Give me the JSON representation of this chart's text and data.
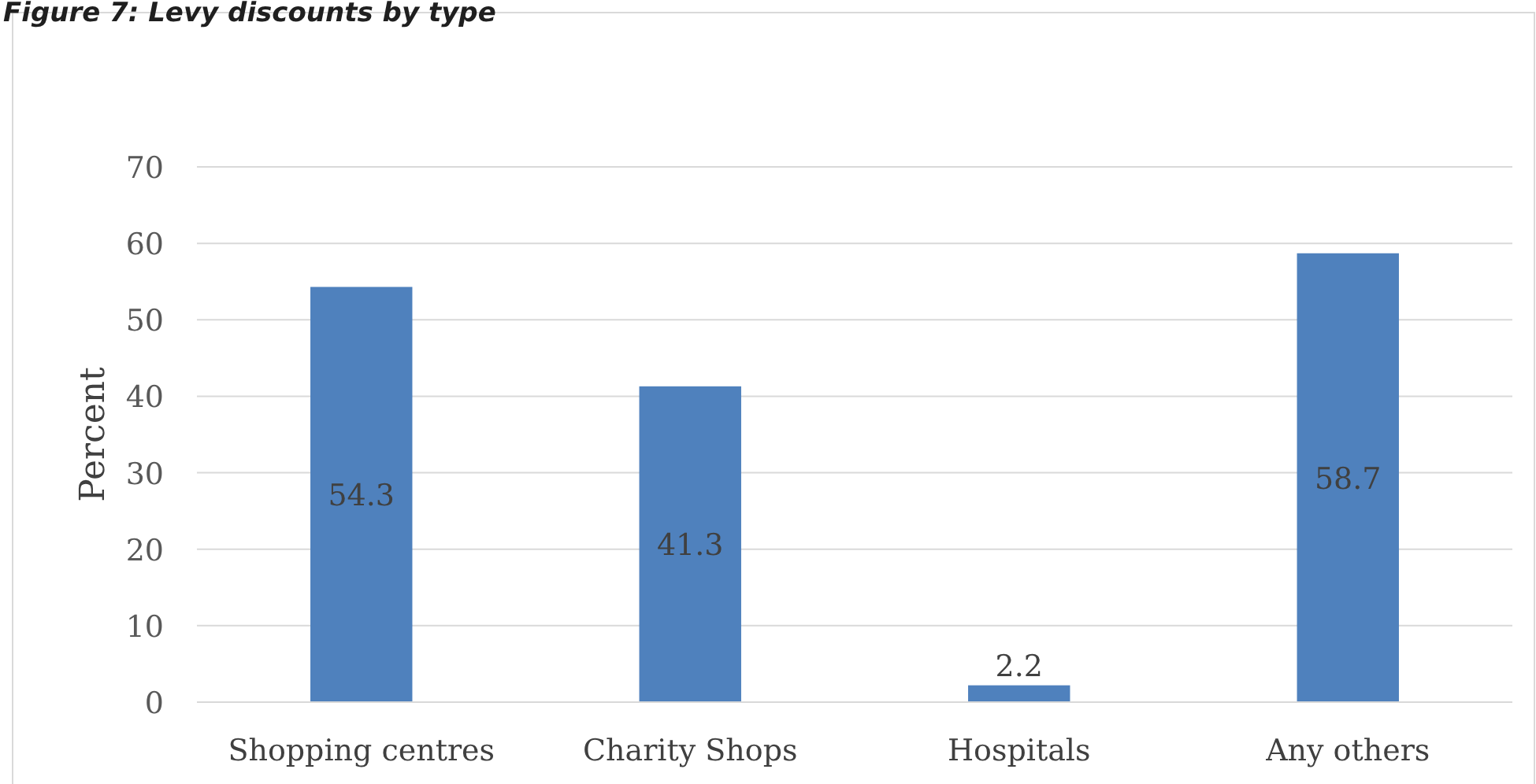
{
  "chart_data": {
    "type": "bar",
    "title": "Figure 7: Levy discounts by type",
    "ylabel": "Percent",
    "categories": [
      "Shopping centres",
      "Charity Shops",
      "Hospitals",
      "Any others"
    ],
    "values": [
      54.3,
      41.3,
      2.2,
      58.7
    ],
    "color": "#4f81bd",
    "ylim": [
      0,
      70
    ],
    "yticks": [
      0,
      10,
      20,
      30,
      40,
      50,
      60,
      70
    ],
    "grid": "y",
    "data_labels": true
  }
}
